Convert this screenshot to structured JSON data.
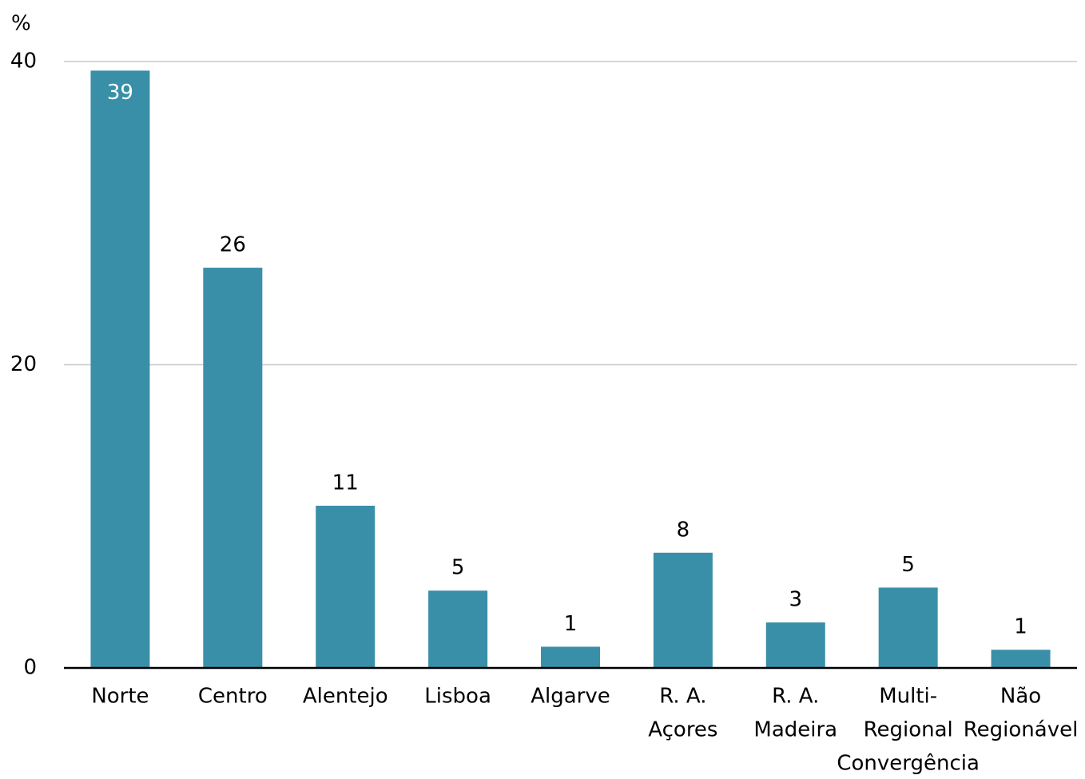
{
  "chart_data": {
    "type": "bar",
    "y_label": "%",
    "categories": [
      [
        "Norte"
      ],
      [
        "Centro"
      ],
      [
        "Alentejo"
      ],
      [
        "Lisboa"
      ],
      [
        "Algarve"
      ],
      [
        "R. A.",
        "Açores"
      ],
      [
        "R. A.",
        "Madeira"
      ],
      [
        "Multi-",
        "Regional",
        "Convergência"
      ],
      [
        "Não",
        "Regionável"
      ]
    ],
    "values": [
      39.4,
      26.4,
      10.7,
      5.1,
      1.4,
      7.6,
      3.0,
      5.3,
      1.2
    ],
    "value_labels": [
      "39",
      "26",
      "11",
      "5",
      "1",
      "8",
      "3",
      "5",
      "1"
    ],
    "color": "#3a8fa8",
    "ylim": [
      0,
      40
    ],
    "yticks": [
      0,
      20,
      40
    ],
    "grid": true
  }
}
